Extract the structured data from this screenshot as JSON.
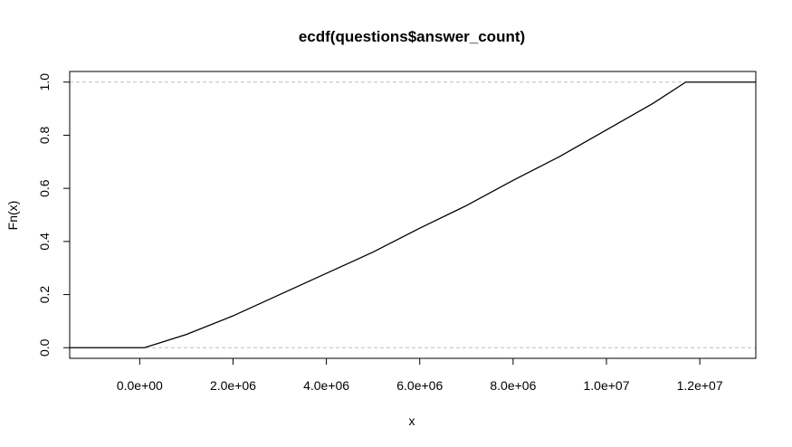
{
  "chart_data": {
    "type": "line",
    "title": "ecdf(questions$answer_count)",
    "xlabel": "x",
    "ylabel": "Fn(x)",
    "xlim": [
      -1500000,
      13200000
    ],
    "ylim": [
      -0.04,
      1.04
    ],
    "x_ticks": [
      {
        "value": 0,
        "label": "0.0e+00"
      },
      {
        "value": 2000000,
        "label": "2.0e+06"
      },
      {
        "value": 4000000,
        "label": "4.0e+06"
      },
      {
        "value": 6000000,
        "label": "6.0e+06"
      },
      {
        "value": 8000000,
        "label": "8.0e+06"
      },
      {
        "value": 10000000,
        "label": "1.0e+07"
      },
      {
        "value": 12000000,
        "label": "1.2e+07"
      }
    ],
    "y_ticks": [
      {
        "value": 0.0,
        "label": "0.0"
      },
      {
        "value": 0.2,
        "label": "0.2"
      },
      {
        "value": 0.4,
        "label": "0.4"
      },
      {
        "value": 0.6,
        "label": "0.6"
      },
      {
        "value": 0.8,
        "label": "0.8"
      },
      {
        "value": 1.0,
        "label": "1.0"
      }
    ],
    "reference_lines": [
      0,
      1
    ],
    "series": [
      {
        "x": [
          -1500000,
          0,
          100000,
          1000000,
          2000000,
          3000000,
          4000000,
          5000000,
          6000000,
          7000000,
          8000000,
          9000000,
          10000000,
          11000000,
          11700000,
          13200000
        ],
        "y": [
          0,
          0,
          0,
          0.05,
          0.12,
          0.2,
          0.28,
          0.36,
          0.45,
          0.535,
          0.63,
          0.72,
          0.82,
          0.92,
          1.0,
          1.0
        ]
      }
    ],
    "colors": {
      "line": "#000000",
      "reference": "#bebebe"
    },
    "grid": false
  }
}
